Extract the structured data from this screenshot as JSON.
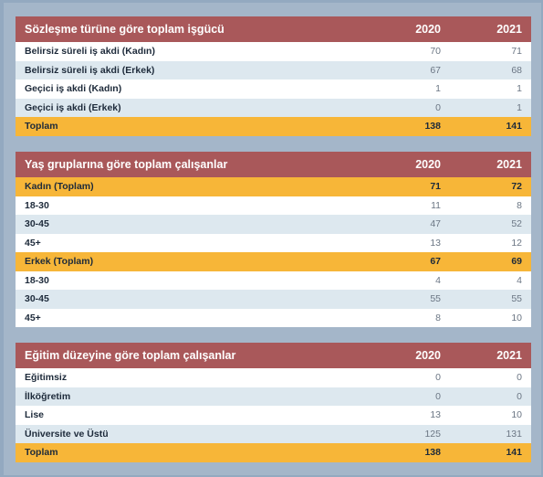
{
  "tables": [
    {
      "title": "Sözleşme türüne göre toplam işgücü",
      "col2020": "2020",
      "col2021": "2021",
      "rows": [
        {
          "label": "Belirsiz süreli iş akdi (Kadın)",
          "v2020": "70",
          "v2021": "71"
        },
        {
          "label": "Belirsiz süreli iş akdi (Erkek)",
          "v2020": "67",
          "v2021": "68"
        },
        {
          "label": "Geçici iş akdi (Kadın)",
          "v2020": "1",
          "v2021": "1"
        },
        {
          "label": "Geçici iş akdi (Erkek)",
          "v2020": "0",
          "v2021": "1"
        },
        {
          "label": "Toplam",
          "v2020": "138",
          "v2021": "141"
        }
      ]
    },
    {
      "title": "Yaş gruplarına göre toplam çalışanlar",
      "col2020": "2020",
      "col2021": "2021",
      "rows": [
        {
          "label": "Kadın (Toplam)",
          "v2020": "71",
          "v2021": "72"
        },
        {
          "label": "18-30",
          "v2020": "11",
          "v2021": "8"
        },
        {
          "label": "30-45",
          "v2020": "47",
          "v2021": "52"
        },
        {
          "label": "45+",
          "v2020": "13",
          "v2021": "12"
        },
        {
          "label": "Erkek (Toplam)",
          "v2020": "67",
          "v2021": "69"
        },
        {
          "label": "18-30",
          "v2020": "4",
          "v2021": "4"
        },
        {
          "label": "30-45",
          "v2020": "55",
          "v2021": "55"
        },
        {
          "label": "45+",
          "v2020": "8",
          "v2021": "10"
        }
      ]
    },
    {
      "title": "Eğitim düzeyine göre toplam çalışanlar",
      "col2020": "2020",
      "col2021": "2021",
      "rows": [
        {
          "label": "Eğitimsiz",
          "v2020": "0",
          "v2021": "0"
        },
        {
          "label": "İlköğretim",
          "v2020": "0",
          "v2021": "0"
        },
        {
          "label": "Lise",
          "v2020": "13",
          "v2021": "10"
        },
        {
          "label": "Üniversite ve Üstü",
          "v2020": "125",
          "v2021": "131"
        },
        {
          "label": "Toplam",
          "v2020": "138",
          "v2021": "141"
        }
      ]
    }
  ]
}
